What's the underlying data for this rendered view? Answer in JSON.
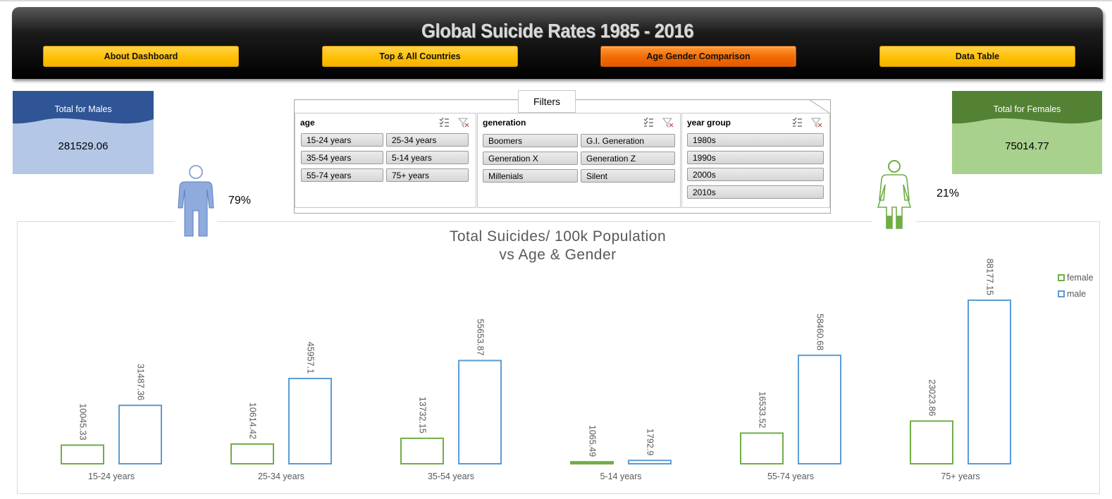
{
  "header": {
    "title": "Global Suicide  Rates 1985 - 2016",
    "nav": [
      {
        "label": "About Dashboard",
        "active": false
      },
      {
        "label": "Top & All Countries",
        "active": false
      },
      {
        "label": "Age Gender Comparison",
        "active": true
      },
      {
        "label": "Data Table",
        "active": false
      }
    ]
  },
  "kpi_males": {
    "label": "Total for Males",
    "value": "281529.06",
    "percent": "79%",
    "color": "#2f5597",
    "fill": "#b4c7e7"
  },
  "kpi_females": {
    "label": "Total for Females",
    "value": "75014.77",
    "percent": "21%",
    "color": "#548235",
    "fill": "#a9d18e"
  },
  "filters": {
    "tab_label": "Filters",
    "slicers": [
      {
        "title": "age",
        "items": [
          "15-24 years",
          "25-34 years",
          "35-54 years",
          "5-14 years",
          "55-74 years",
          "75+ years"
        ]
      },
      {
        "title": "generation",
        "items": [
          "Boomers",
          "G.I. Generation",
          "Generation X",
          "Generation Z",
          "Millenials",
          "Silent"
        ]
      },
      {
        "title": "year group",
        "items": [
          "1980s",
          "1990s",
          "2000s",
          "2010s"
        ]
      }
    ],
    "icons": [
      "multi-select-icon",
      "clear-filter-icon"
    ]
  },
  "chart_data": {
    "type": "bar",
    "title_line1": "Total Suicides/ 100k Population",
    "title_line2": "vs Age & Gender",
    "categories": [
      "15-24 years",
      "25-34 years",
      "35-54 years",
      "5-14 years",
      "55-74 years",
      "75+ years"
    ],
    "series": [
      {
        "name": "female",
        "color": "#70ad47",
        "values": [
          10045.33,
          10614.42,
          13732.15,
          1065.49,
          16533.52,
          23023.86
        ]
      },
      {
        "name": "male",
        "color": "#5b9bd5",
        "values": [
          31487.36,
          45957.1,
          55653.87,
          1792.9,
          58460.68,
          88177.15
        ]
      }
    ],
    "value_labels": {
      "female": [
        "10045.33",
        "10614.42",
        "13732.15",
        "1065.49",
        "16533.52",
        "23023.86"
      ],
      "male": [
        "31487.36",
        "45957.1",
        "55653.87",
        "1792.9",
        "58460.68",
        "88177.15"
      ]
    },
    "ylim": [
      0,
      95000
    ],
    "legend_position": "top-right",
    "grid": false
  }
}
